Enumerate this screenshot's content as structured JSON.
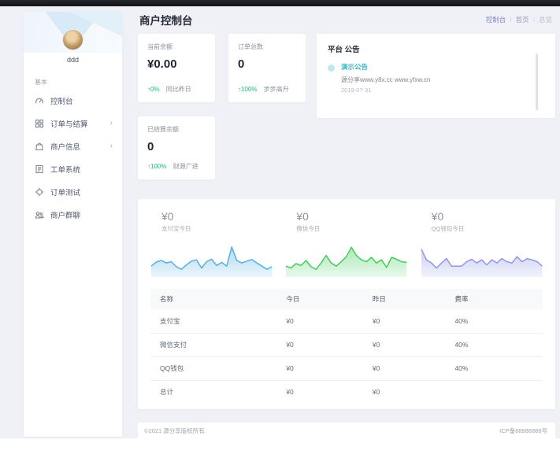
{
  "colors": {
    "positive": "#19be6b",
    "accent-teal": "#3ab5c2",
    "breadcrumb-active": "#8087c5",
    "spark-blue": "#54aee0",
    "spark-green": "#43cb5c",
    "spark-purple": "#8f96e5"
  },
  "header": {
    "title": "商户控制台",
    "breadcrumb": [
      "控制台",
      "首页",
      "总览"
    ],
    "breadcrumb_sep": "/"
  },
  "sidebar": {
    "username": "ddd",
    "section_label": "基本",
    "chevron": "›",
    "items": [
      {
        "label": "控制台",
        "icon": "dashboard-icon",
        "has_children": false
      },
      {
        "label": "订单与结算",
        "icon": "orders-icon",
        "has_children": true
      },
      {
        "label": "商户信息",
        "icon": "merchant-info-icon",
        "has_children": true
      },
      {
        "label": "工单系统",
        "icon": "ticket-icon",
        "has_children": false
      },
      {
        "label": "订单测试",
        "icon": "order-test-icon",
        "has_children": false
      },
      {
        "label": "商户群聊",
        "icon": "group-chat-icon",
        "has_children": false
      }
    ]
  },
  "stats": [
    {
      "label": "当前余额",
      "value": "¥0.00",
      "arrow": "↑",
      "delta": "0%",
      "delta_note": "同比昨日"
    },
    {
      "label": "订单总数",
      "value": "0",
      "arrow": "↑",
      "delta": "100%",
      "delta_note": "步步高升"
    },
    {
      "label": "已结算余额",
      "value": "0",
      "arrow": "↑",
      "delta": "100%",
      "delta_note": "财源广进"
    }
  ],
  "announcement": {
    "title": "平台 公告",
    "items": [
      {
        "title": "演示公告",
        "text": "源分享www.y8x.cc www.yfxw.cn",
        "date": "2019-07-31"
      }
    ]
  },
  "chart_data": [
    {
      "type": "area",
      "name": "支付宝今日",
      "value": "¥0",
      "color": "#54aee0",
      "ylim": [
        0,
        10
      ],
      "values": [
        3.2,
        4.5,
        5.0,
        4.2,
        4.6,
        3.0,
        2.2,
        3.6,
        4.8,
        5.2,
        2.6,
        4.6,
        5.4,
        3.4,
        4.4,
        3.2,
        9.3,
        5.0,
        4.2,
        4.8,
        5.3,
        4.2,
        3.2,
        2.2,
        3.0
      ]
    },
    {
      "type": "area",
      "name": "微信今日",
      "value": "¥0",
      "color": "#43cb5c",
      "ylim": [
        0,
        10
      ],
      "values": [
        3.2,
        2.6,
        4.0,
        3.4,
        5.0,
        3.0,
        2.2,
        4.2,
        6.6,
        4.2,
        3.2,
        4.6,
        6.2,
        9.2,
        6.6,
        5.2,
        4.6,
        6.0,
        4.2,
        5.2,
        2.8,
        6.0,
        5.4,
        4.6,
        4.4
      ]
    },
    {
      "type": "area",
      "name": "QQ钱包今日",
      "value": "¥0",
      "color": "#8f96e5",
      "ylim": [
        0,
        10
      ],
      "values": [
        8.6,
        5.2,
        4.2,
        2.6,
        4.2,
        5.6,
        3.2,
        3.2,
        3.2,
        4.6,
        5.4,
        4.2,
        5.2,
        3.6,
        5.2,
        4.2,
        5.6,
        4.6,
        4.2,
        6.2,
        4.6,
        5.6,
        5.2,
        4.6,
        3.2
      ]
    }
  ],
  "table": {
    "headers": [
      "名称",
      "今日",
      "昨日",
      "费率"
    ],
    "rows": [
      [
        "支付宝",
        "¥0",
        "¥0",
        "40%"
      ],
      [
        "微信支付",
        "¥0",
        "¥0",
        "40%"
      ],
      [
        "QQ钱包",
        "¥0",
        "¥0",
        "40%"
      ],
      [
        "总计",
        "¥0",
        "¥0",
        ""
      ]
    ]
  },
  "footer": {
    "copyright": "©2021 源分享版权所有.",
    "icp": "ICP备88888888号"
  }
}
